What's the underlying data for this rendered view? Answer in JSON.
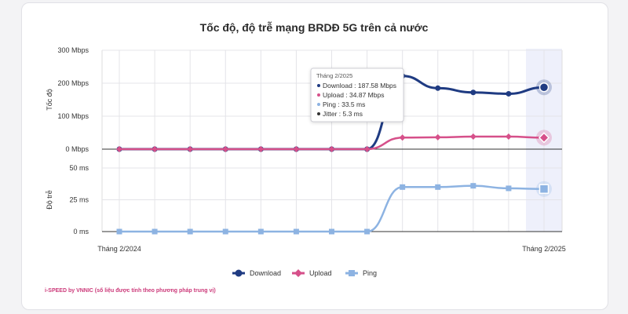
{
  "chart_data": {
    "title": "Tốc độ, độ trễ mạng BRDĐ 5G trên cả nước",
    "type": "line",
    "x": [
      "Tháng 2/2024",
      "",
      "",
      "",
      "",
      "",
      "",
      "",
      "",
      "",
      "",
      "",
      "Tháng 2/2025"
    ],
    "x_tick_labels": [
      "Tháng 2/2024",
      "Tháng 2/2025"
    ],
    "panels": [
      {
        "ylabel": "Tốc độ",
        "yticks": [
          "300 Mbps",
          "200 Mbps",
          "100 Mbps",
          "0 Mbps"
        ],
        "ylim": [
          0,
          300
        ],
        "series": [
          {
            "name": "Download",
            "color": "#1f3b82",
            "values": [
              0,
              0,
              0,
              0,
              0,
              0,
              0,
              0,
              222,
              185,
              172,
              168,
              187.58
            ]
          },
          {
            "name": "Upload",
            "color": "#d6508a",
            "values": [
              0,
              0,
              0,
              0,
              0,
              0,
              0,
              0,
              35,
              36,
              38,
              38,
              34.87
            ]
          }
        ]
      },
      {
        "ylabel": "Độ trễ",
        "yticks": [
          "50 ms",
          "25 ms",
          "0 ms"
        ],
        "ylim": [
          0,
          50
        ],
        "series": [
          {
            "name": "Ping",
            "color": "#8db3e2",
            "values": [
              0,
              0,
              0,
              0,
              0,
              0,
              0,
              0,
              35,
              35,
              36,
              34,
              33.5
            ]
          }
        ]
      }
    ],
    "tooltip": {
      "header": "Tháng 2/2025",
      "lines": [
        "Download : 187.58 Mbps",
        "Upload : 34.87 Mbps",
        "Ping : 33.5 ms",
        "Jitter : 5.3 ms"
      ],
      "colors": [
        "#1f3b82",
        "#d6508a",
        "#8db3e2",
        "#333333"
      ]
    },
    "legend": [
      {
        "label": "Download",
        "color": "#1f3b82",
        "marker": "circle"
      },
      {
        "label": "Upload",
        "color": "#d6508a",
        "marker": "diamond"
      },
      {
        "label": "Ping",
        "color": "#8db3e2",
        "marker": "square"
      }
    ],
    "legend_position": "bottom",
    "grid": true
  },
  "credit": "i-SPEED by VNNIC (số liệu được tính theo phương pháp trung vị)"
}
